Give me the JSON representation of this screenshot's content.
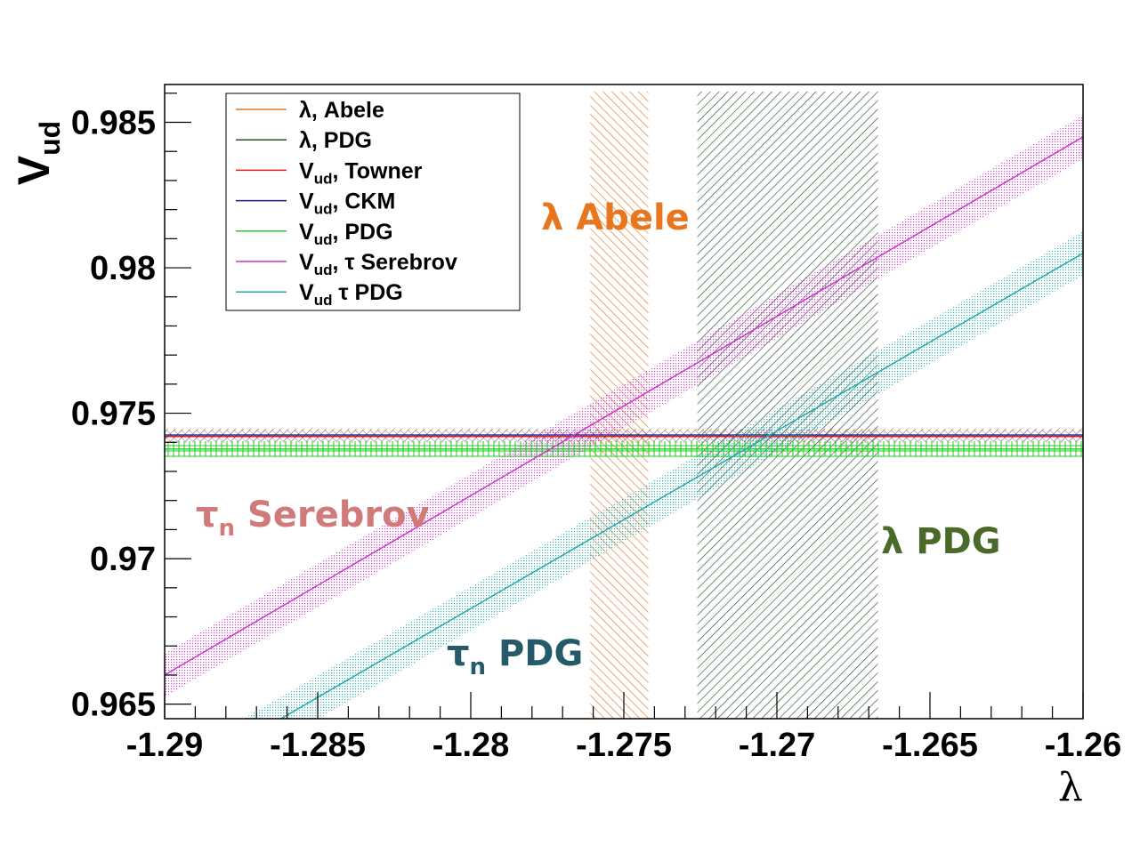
{
  "chart_data": {
    "type": "line",
    "title": "",
    "xlabel": "λ",
    "ylabel": {
      "main": "V",
      "sub": "ud"
    },
    "xlim": [
      -1.29,
      -1.26
    ],
    "ylim": [
      0.9645,
      0.9863
    ],
    "x_ticks": [
      -1.29,
      -1.285,
      -1.28,
      -1.275,
      -1.27,
      -1.265,
      -1.26
    ],
    "x_tick_labels": [
      "-1.29",
      "-1.285",
      "-1.28",
      "-1.275",
      "-1.27",
      "-1.265",
      "-1.26"
    ],
    "y_ticks": [
      0.965,
      0.97,
      0.975,
      0.98,
      0.985
    ],
    "y_tick_labels": [
      "0.965",
      "0.97",
      "0.975",
      "0.98",
      "0.985"
    ],
    "grid": false,
    "legend_position": "top-left",
    "legend": [
      {
        "text": "λ, Abele",
        "color": "#e8761f"
      },
      {
        "text": "λ, PDG",
        "color": "#2e4f2e"
      },
      {
        "text_main": "V",
        "text_sub": "ud",
        "text_rest": ", Towner",
        "color": "#e02020"
      },
      {
        "text_main": "V",
        "text_sub": "ud",
        "text_rest": ", CKM",
        "color": "#1a1a80"
      },
      {
        "text_main": "V",
        "text_sub": "ud",
        "text_rest": ", PDG",
        "color": "#22cc22"
      },
      {
        "text_main": "V",
        "text_sub": "ud",
        "text_rest": ", τ Serebrov",
        "color": "#cc33cc"
      },
      {
        "text_main": "V",
        "text_sub": "ud",
        "text_rest": " τ PDG",
        "color": "#22aaaa"
      }
    ],
    "vertical_bands": [
      {
        "name": "λ, Abele",
        "x_range": [
          -1.2761,
          -1.2742
        ],
        "color": "#e8761f"
      },
      {
        "name": "λ, PDG",
        "x_range": [
          -1.2726,
          -1.2667
        ],
        "color": "#2e4f2e"
      }
    ],
    "horizontal_bands": [
      {
        "name": "Vud, Towner",
        "y_center": 0.9742,
        "half_width": 0.00022,
        "color": "#e02020"
      },
      {
        "name": "Vud, CKM",
        "y_center": 0.97425,
        "half_width": 0.00022,
        "color": "#1a1a80"
      },
      {
        "name": "Vud, PDG",
        "y_center": 0.97377,
        "half_width": 0.00027,
        "color": "#22cc22"
      }
    ],
    "series": [
      {
        "name": "Vud, τ Serebrov",
        "color": "#cc33cc",
        "x": [
          -1.29,
          -1.26
        ],
        "y": [
          0.966,
          0.9845
        ],
        "half_width": 0.00075
      },
      {
        "name": "Vud τ PDG",
        "color": "#22aaaa",
        "x": [
          -1.2862,
          -1.26
        ],
        "y": [
          0.9645,
          0.9805
        ],
        "half_width": 0.00075
      }
    ],
    "annotations": [
      {
        "main": "λ Abele",
        "sub": "",
        "rest": "",
        "color": "#e8761f"
      },
      {
        "main": "τ",
        "sub": "n",
        "rest": " Serebrov",
        "color": "#d07a7a"
      },
      {
        "main": "λ PDG",
        "sub": "",
        "rest": "",
        "color": "#4a6a2a"
      },
      {
        "main": "τ",
        "sub": "n",
        "rest": " PDG",
        "color": "#255a6a"
      }
    ]
  }
}
